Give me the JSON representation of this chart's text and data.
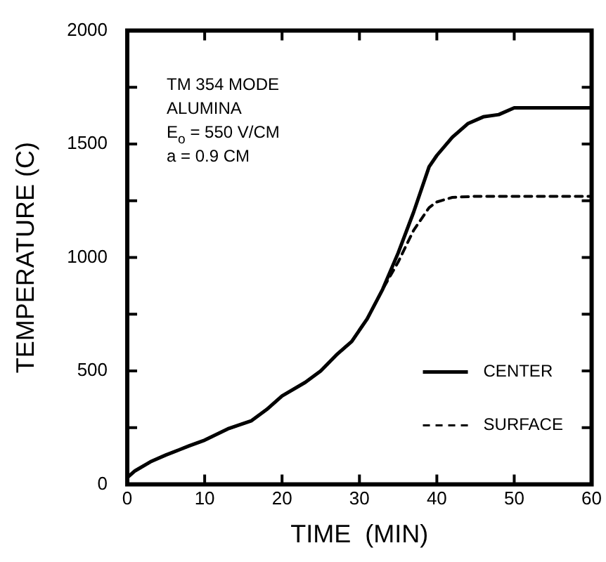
{
  "chart_data": {
    "type": "line",
    "xlabel": "TIME  (MIN)",
    "ylabel": "TEMPERATURE (C)",
    "annotations": [
      "TM 354 MODE",
      "ALUMINA",
      "E$_{o}$ = 550 V/CM",
      "a = 0.9 CM"
    ],
    "xlim": [
      0,
      60
    ],
    "xticks": [
      0,
      10,
      20,
      30,
      40,
      50,
      60
    ],
    "ylim": [
      0,
      2000
    ],
    "yticks": [
      0,
      {
        "value": 250,
        "label": null
      },
      500,
      {
        "value": 750,
        "label": null
      },
      1000,
      {
        "value": 1250,
        "label": null
      },
      1500,
      {
        "value": 1750,
        "label": null
      },
      2000
    ],
    "grid": false,
    "legend": "bottom right",
    "marker": "none",
    "series": [
      {
        "name": "CENTER",
        "color": "#000000",
        "line_style": "solid",
        "x": [
          0,
          1,
          3,
          5,
          8,
          10,
          13,
          16,
          18,
          20,
          23,
          25,
          27,
          29,
          31,
          33,
          35,
          37,
          39,
          40,
          42,
          44,
          46,
          48,
          50,
          52,
          56,
          60
        ],
        "values": [
          30,
          60,
          100,
          130,
          170,
          195,
          245,
          280,
          330,
          390,
          450,
          500,
          570,
          630,
          730,
          860,
          1020,
          1200,
          1400,
          1450,
          1530,
          1590,
          1620,
          1630,
          1660,
          1660,
          1660,
          1660
        ]
      },
      {
        "name": "SURFACE",
        "color": "#000000",
        "line_style": "dashed",
        "x": [
          0,
          1,
          3,
          5,
          8,
          10,
          13,
          16,
          18,
          20,
          23,
          25,
          27,
          29,
          31,
          33,
          35,
          37,
          39,
          40,
          42,
          45,
          50,
          60
        ],
        "values": [
          30,
          60,
          100,
          130,
          170,
          195,
          245,
          280,
          330,
          390,
          450,
          500,
          570,
          630,
          730,
          860,
          980,
          1120,
          1220,
          1245,
          1265,
          1270,
          1270,
          1270
        ]
      }
    ]
  }
}
